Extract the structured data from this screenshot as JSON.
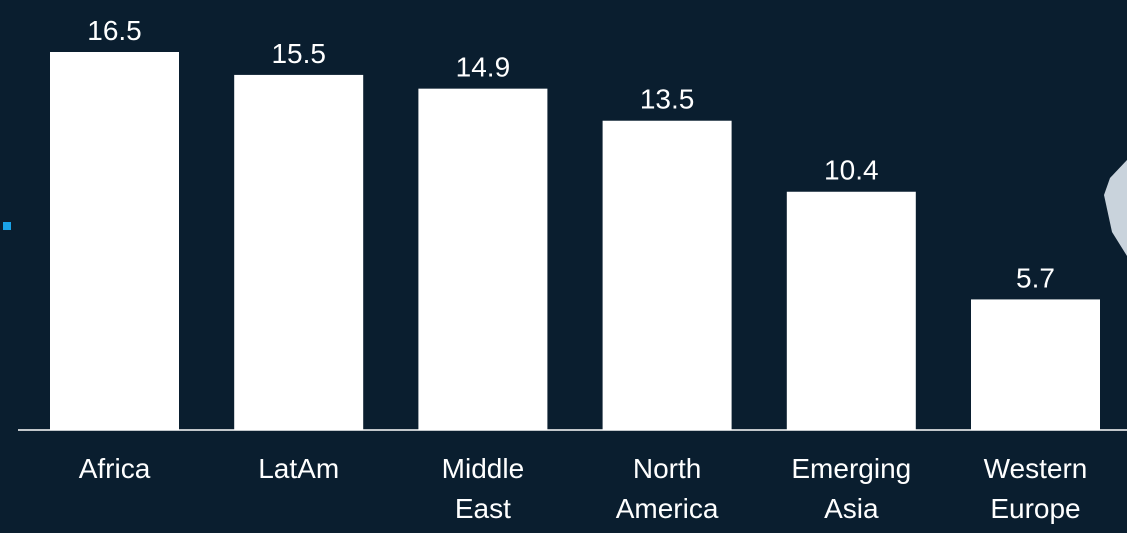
{
  "chart_data": {
    "type": "bar",
    "categories": [
      [
        "Africa"
      ],
      [
        "LatAm"
      ],
      [
        "Middle",
        "East"
      ],
      [
        "North",
        "America"
      ],
      [
        "Emerging",
        "Asia"
      ],
      [
        "Western",
        "Europe"
      ]
    ],
    "values": [
      16.5,
      15.5,
      14.9,
      13.5,
      10.4,
      5.7
    ],
    "color": "#ffffff"
  }
}
